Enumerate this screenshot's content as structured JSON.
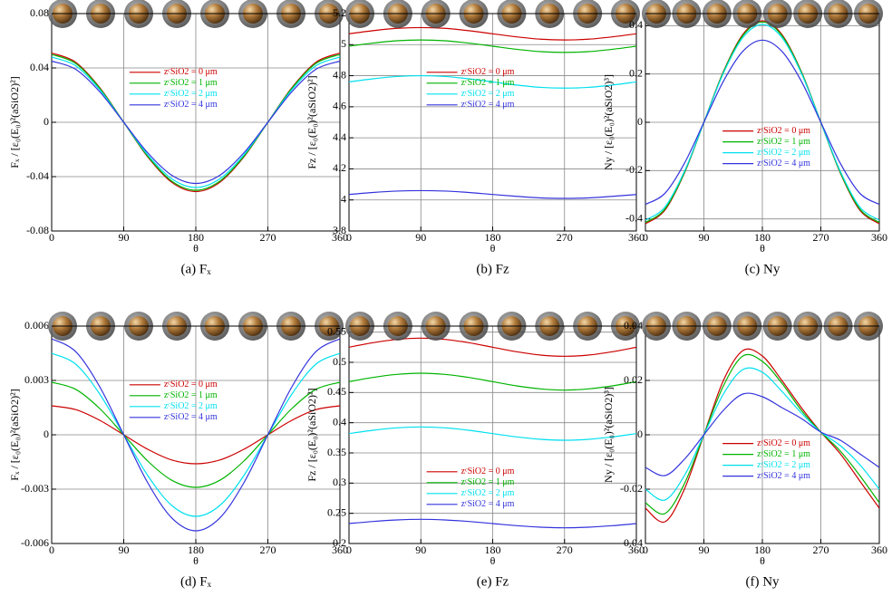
{
  "chart_data": [
    {
      "type": "line",
      "caption": "(a) Fₓ",
      "xlabel": "θ",
      "ylabel": "Fₓ / [ε₀(E₀)²(aSiO2)²]",
      "x": [
        0,
        30,
        60,
        90,
        120,
        150,
        180,
        210,
        240,
        270,
        300,
        330,
        360
      ],
      "xlim": [
        0,
        360
      ],
      "xticks": [
        0,
        90,
        180,
        270,
        360
      ],
      "ylim": [
        -0.08,
        0.08
      ],
      "yticks": [
        -0.08,
        -0.04,
        0,
        0.04,
        0.08
      ],
      "grid": true,
      "legend": "upper center",
      "series": [
        {
          "name": "zᶜSiO2 = 0 μm",
          "color": "#cc0000",
          "values": [
            0.051,
            0.0442,
            0.0255,
            0,
            -0.0255,
            -0.0442,
            -0.051,
            -0.0442,
            -0.0255,
            0,
            0.0255,
            0.0442,
            0.051
          ]
        },
        {
          "name": "zᶜSiO2 = 1 μm",
          "color": "#00b400",
          "values": [
            0.05,
            0.0433,
            0.025,
            0,
            -0.025,
            -0.0433,
            -0.05,
            -0.0433,
            -0.025,
            0,
            0.025,
            0.0433,
            0.05
          ]
        },
        {
          "name": "zᶜSiO2 = 2 μm",
          "color": "#00e0ee",
          "values": [
            0.048,
            0.0416,
            0.024,
            0,
            -0.024,
            -0.0416,
            -0.048,
            -0.0416,
            -0.024,
            0,
            0.024,
            0.0416,
            0.048
          ]
        },
        {
          "name": "zᶜSiO2 = 4 μm",
          "color": "#3333dd",
          "values": [
            0.045,
            0.039,
            0.0225,
            0,
            -0.0225,
            -0.039,
            -0.045,
            -0.039,
            -0.0225,
            0,
            0.0225,
            0.039,
            0.045
          ]
        }
      ]
    },
    {
      "type": "line",
      "caption": "(b) Fz",
      "xlabel": "θ",
      "ylabel": "Fz / [ε₀(E₀)²(aSiO2)²]",
      "x": [
        0,
        30,
        60,
        90,
        120,
        150,
        180,
        210,
        240,
        270,
        300,
        330,
        360
      ],
      "xlim": [
        0,
        360
      ],
      "xticks": [
        0,
        90,
        180,
        270,
        360
      ],
      "ylim": [
        3.8,
        5.2
      ],
      "yticks": [
        3.8,
        4,
        4.2,
        4.4,
        4.6,
        4.8,
        5,
        5.2
      ],
      "grid": true,
      "legend": "upper center",
      "series": [
        {
          "name": "zᶜSiO2 = 0 μm",
          "color": "#cc0000",
          "values": [
            5.07,
            5.09,
            5.105,
            5.11,
            5.105,
            5.09,
            5.07,
            5.05,
            5.035,
            5.03,
            5.035,
            5.05,
            5.07
          ]
        },
        {
          "name": "zᶜSiO2 = 1 μm",
          "color": "#00b400",
          "values": [
            4.99,
            5.01,
            5.025,
            5.03,
            5.025,
            5.01,
            4.99,
            4.97,
            4.955,
            4.95,
            4.955,
            4.97,
            4.99
          ]
        },
        {
          "name": "zᶜSiO2 = 2 μm",
          "color": "#00e0ee",
          "values": [
            4.76,
            4.78,
            4.795,
            4.8,
            4.795,
            4.78,
            4.76,
            4.74,
            4.725,
            4.72,
            4.725,
            4.74,
            4.76
          ]
        },
        {
          "name": "zᶜSiO2 = 4 μm",
          "color": "#3333dd",
          "values": [
            4.035,
            4.048,
            4.057,
            4.06,
            4.057,
            4.048,
            4.035,
            4.023,
            4.013,
            4.01,
            4.013,
            4.023,
            4.035
          ]
        }
      ]
    },
    {
      "type": "line",
      "caption": "(c) Ny",
      "xlabel": "θ",
      "ylabel": "Ny / [ε₀(E₀)²(aSiO2)³]",
      "x": [
        0,
        30,
        60,
        90,
        120,
        150,
        180,
        210,
        240,
        270,
        300,
        330,
        360
      ],
      "xlim": [
        0,
        360
      ],
      "xticks": [
        0,
        90,
        180,
        270,
        360
      ],
      "ylim": [
        -0.45,
        0.45
      ],
      "yticks": [
        -0.4,
        -0.2,
        0,
        0.2,
        0.4
      ],
      "grid": true,
      "legend": "center right",
      "series": [
        {
          "name": "zᶜSiO2 = 0 μm",
          "color": "#cc0000",
          "values": [
            -0.42,
            -0.364,
            -0.21,
            0,
            0.21,
            0.364,
            0.42,
            0.364,
            0.21,
            0,
            -0.21,
            -0.364,
            -0.42
          ]
        },
        {
          "name": "zᶜSiO2 = 1 μm",
          "color": "#00b400",
          "values": [
            -0.415,
            -0.359,
            -0.208,
            0,
            0.208,
            0.359,
            0.415,
            0.359,
            0.208,
            0,
            -0.208,
            -0.359,
            -0.415
          ]
        },
        {
          "name": "zᶜSiO2 = 2 μm",
          "color": "#00e0ee",
          "values": [
            -0.405,
            -0.351,
            -0.203,
            0,
            0.203,
            0.351,
            0.405,
            0.351,
            0.203,
            0,
            -0.203,
            -0.351,
            -0.405
          ]
        },
        {
          "name": "zᶜSiO2 = 4 μm",
          "color": "#3333dd",
          "values": [
            -0.34,
            -0.294,
            -0.17,
            0,
            0.17,
            0.294,
            0.34,
            0.294,
            0.17,
            0,
            -0.17,
            -0.294,
            -0.34
          ]
        }
      ]
    },
    {
      "type": "line",
      "caption": "(d) Fₓ",
      "xlabel": "θ",
      "ylabel": "Fₓ / [ε₀(E₀)²(aSiO2)²]",
      "x": [
        0,
        30,
        60,
        90,
        120,
        150,
        180,
        210,
        240,
        270,
        300,
        330,
        360
      ],
      "xlim": [
        0,
        360
      ],
      "xticks": [
        0,
        90,
        180,
        270,
        360
      ],
      "ylim": [
        -0.006,
        0.006
      ],
      "yticks": [
        -0.006,
        -0.003,
        0,
        0.003,
        0.006
      ],
      "grid": true,
      "legend": "upper center",
      "series": [
        {
          "name": "zᶜSiO2 = 0 μm",
          "color": "#cc0000",
          "values": [
            0.0016,
            0.00139,
            0.0008,
            0,
            -0.0008,
            -0.00139,
            -0.0016,
            -0.00139,
            -0.0008,
            0,
            0.0008,
            0.00139,
            0.0016
          ]
        },
        {
          "name": "zᶜSiO2 = 1 μm",
          "color": "#00b400",
          "values": [
            0.0029,
            0.00251,
            0.00145,
            0,
            -0.00145,
            -0.00251,
            -0.0029,
            -0.00251,
            -0.00145,
            0,
            0.00145,
            0.00251,
            0.0029
          ]
        },
        {
          "name": "zᶜSiO2 = 2 μm",
          "color": "#00e0ee",
          "values": [
            0.0045,
            0.0039,
            0.00225,
            0,
            -0.00225,
            -0.0039,
            -0.0045,
            -0.0039,
            -0.00225,
            0,
            0.00225,
            0.0039,
            0.0045
          ]
        },
        {
          "name": "zᶜSiO2 = 4 μm",
          "color": "#3333dd",
          "values": [
            0.0053,
            0.00459,
            0.00265,
            0,
            -0.00265,
            -0.00459,
            -0.0053,
            -0.00459,
            -0.00265,
            0,
            0.00265,
            0.00459,
            0.0053
          ]
        }
      ]
    },
    {
      "type": "line",
      "caption": "(e) Fz",
      "xlabel": "θ",
      "ylabel": "Fz / [ε₀(E₀)²(aSiO2)²]",
      "x": [
        0,
        30,
        60,
        90,
        120,
        150,
        180,
        210,
        240,
        270,
        300,
        330,
        360
      ],
      "xlim": [
        0,
        360
      ],
      "xticks": [
        0,
        90,
        180,
        270,
        360
      ],
      "ylim": [
        0.2,
        0.56
      ],
      "yticks": [
        0.2,
        0.25,
        0.3,
        0.35,
        0.4,
        0.45,
        0.5,
        0.55
      ],
      "grid": true,
      "legend": "lower center",
      "series": [
        {
          "name": "zᶜSiO2 = 0 μm",
          "color": "#cc0000",
          "values": [
            0.525,
            0.5325,
            0.538,
            0.54,
            0.538,
            0.5325,
            0.525,
            0.5175,
            0.512,
            0.51,
            0.512,
            0.5175,
            0.525
          ]
        },
        {
          "name": "zᶜSiO2 = 1 μm",
          "color": "#00b400",
          "values": [
            0.468,
            0.475,
            0.48,
            0.482,
            0.48,
            0.475,
            0.468,
            0.461,
            0.456,
            0.454,
            0.456,
            0.461,
            0.468
          ]
        },
        {
          "name": "zᶜSiO2 = 2 μm",
          "color": "#00e0ee",
          "values": [
            0.382,
            0.3875,
            0.3915,
            0.393,
            0.3915,
            0.3875,
            0.382,
            0.3765,
            0.3725,
            0.371,
            0.3725,
            0.3765,
            0.382
          ]
        },
        {
          "name": "zᶜSiO2 = 4 μm",
          "color": "#3333dd",
          "values": [
            0.233,
            0.2365,
            0.239,
            0.24,
            0.239,
            0.2365,
            0.233,
            0.2295,
            0.227,
            0.226,
            0.227,
            0.2295,
            0.233
          ]
        }
      ]
    },
    {
      "type": "line",
      "caption": "(f) Ny",
      "xlabel": "θ",
      "ylabel": "Ny / [ε₀(E₀)²(aSiO2)³]",
      "x": [
        0,
        30,
        60,
        90,
        120,
        150,
        180,
        210,
        240,
        270,
        300,
        330,
        360
      ],
      "xlim": [
        0,
        360
      ],
      "xticks": [
        0,
        90,
        180,
        270,
        360
      ],
      "ylim": [
        -0.04,
        0.04
      ],
      "yticks": [
        -0.04,
        -0.02,
        0,
        0.02,
        0.04
      ],
      "grid": true,
      "legend": "center right",
      "series": [
        {
          "name": "zᶜSiO2 = 0 μm",
          "color": "#cc0000",
          "values": [
            -0.027,
            -0.032,
            -0.02,
            0,
            0.02,
            0.031,
            0.029,
            0.02,
            0.01,
            0.001,
            -0.007,
            -0.017,
            -0.027
          ]
        },
        {
          "name": "zᶜSiO2 = 1 μm",
          "color": "#00b400",
          "values": [
            -0.025,
            -0.029,
            -0.018,
            0,
            0.018,
            0.029,
            0.027,
            0.019,
            0.009,
            0.001,
            -0.006,
            -0.015,
            -0.025
          ]
        },
        {
          "name": "zᶜSiO2 = 2 μm",
          "color": "#00e0ee",
          "values": [
            -0.02,
            -0.024,
            -0.015,
            0,
            0.015,
            0.024,
            0.023,
            0.016,
            0.008,
            0.001,
            -0.004,
            -0.011,
            -0.02
          ]
        },
        {
          "name": "zᶜSiO2 = 4 μm",
          "color": "#3333dd",
          "values": [
            -0.012,
            -0.015,
            -0.009,
            0,
            0.009,
            0.015,
            0.014,
            0.01,
            0.006,
            0.001,
            -0.002,
            -0.007,
            -0.012
          ]
        }
      ]
    }
  ]
}
